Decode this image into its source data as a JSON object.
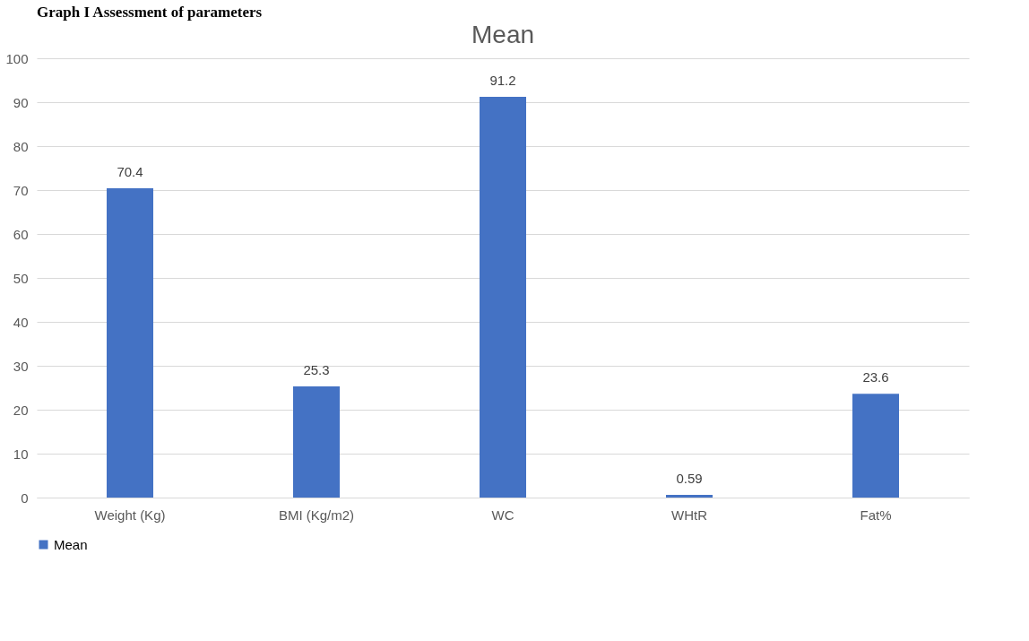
{
  "chart_data": {
    "type": "bar",
    "title": "Mean",
    "annotations": [
      "Graph I Assessment of parameters"
    ],
    "categories": [
      "Weight (Kg)",
      "BMI (Kg/m2)",
      "WC",
      "WHtR",
      "Fat%"
    ],
    "series": [
      {
        "name": "Mean",
        "color": "#4472c4",
        "values": [
          70.4,
          25.3,
          91.2,
          0.59,
          23.6
        ]
      }
    ],
    "ylim": [
      0,
      100
    ],
    "yticks": [
      0,
      10,
      20,
      30,
      40,
      50,
      60,
      70,
      80,
      90,
      100
    ],
    "grid": "y",
    "legend": "bottom",
    "data_labels": true
  }
}
